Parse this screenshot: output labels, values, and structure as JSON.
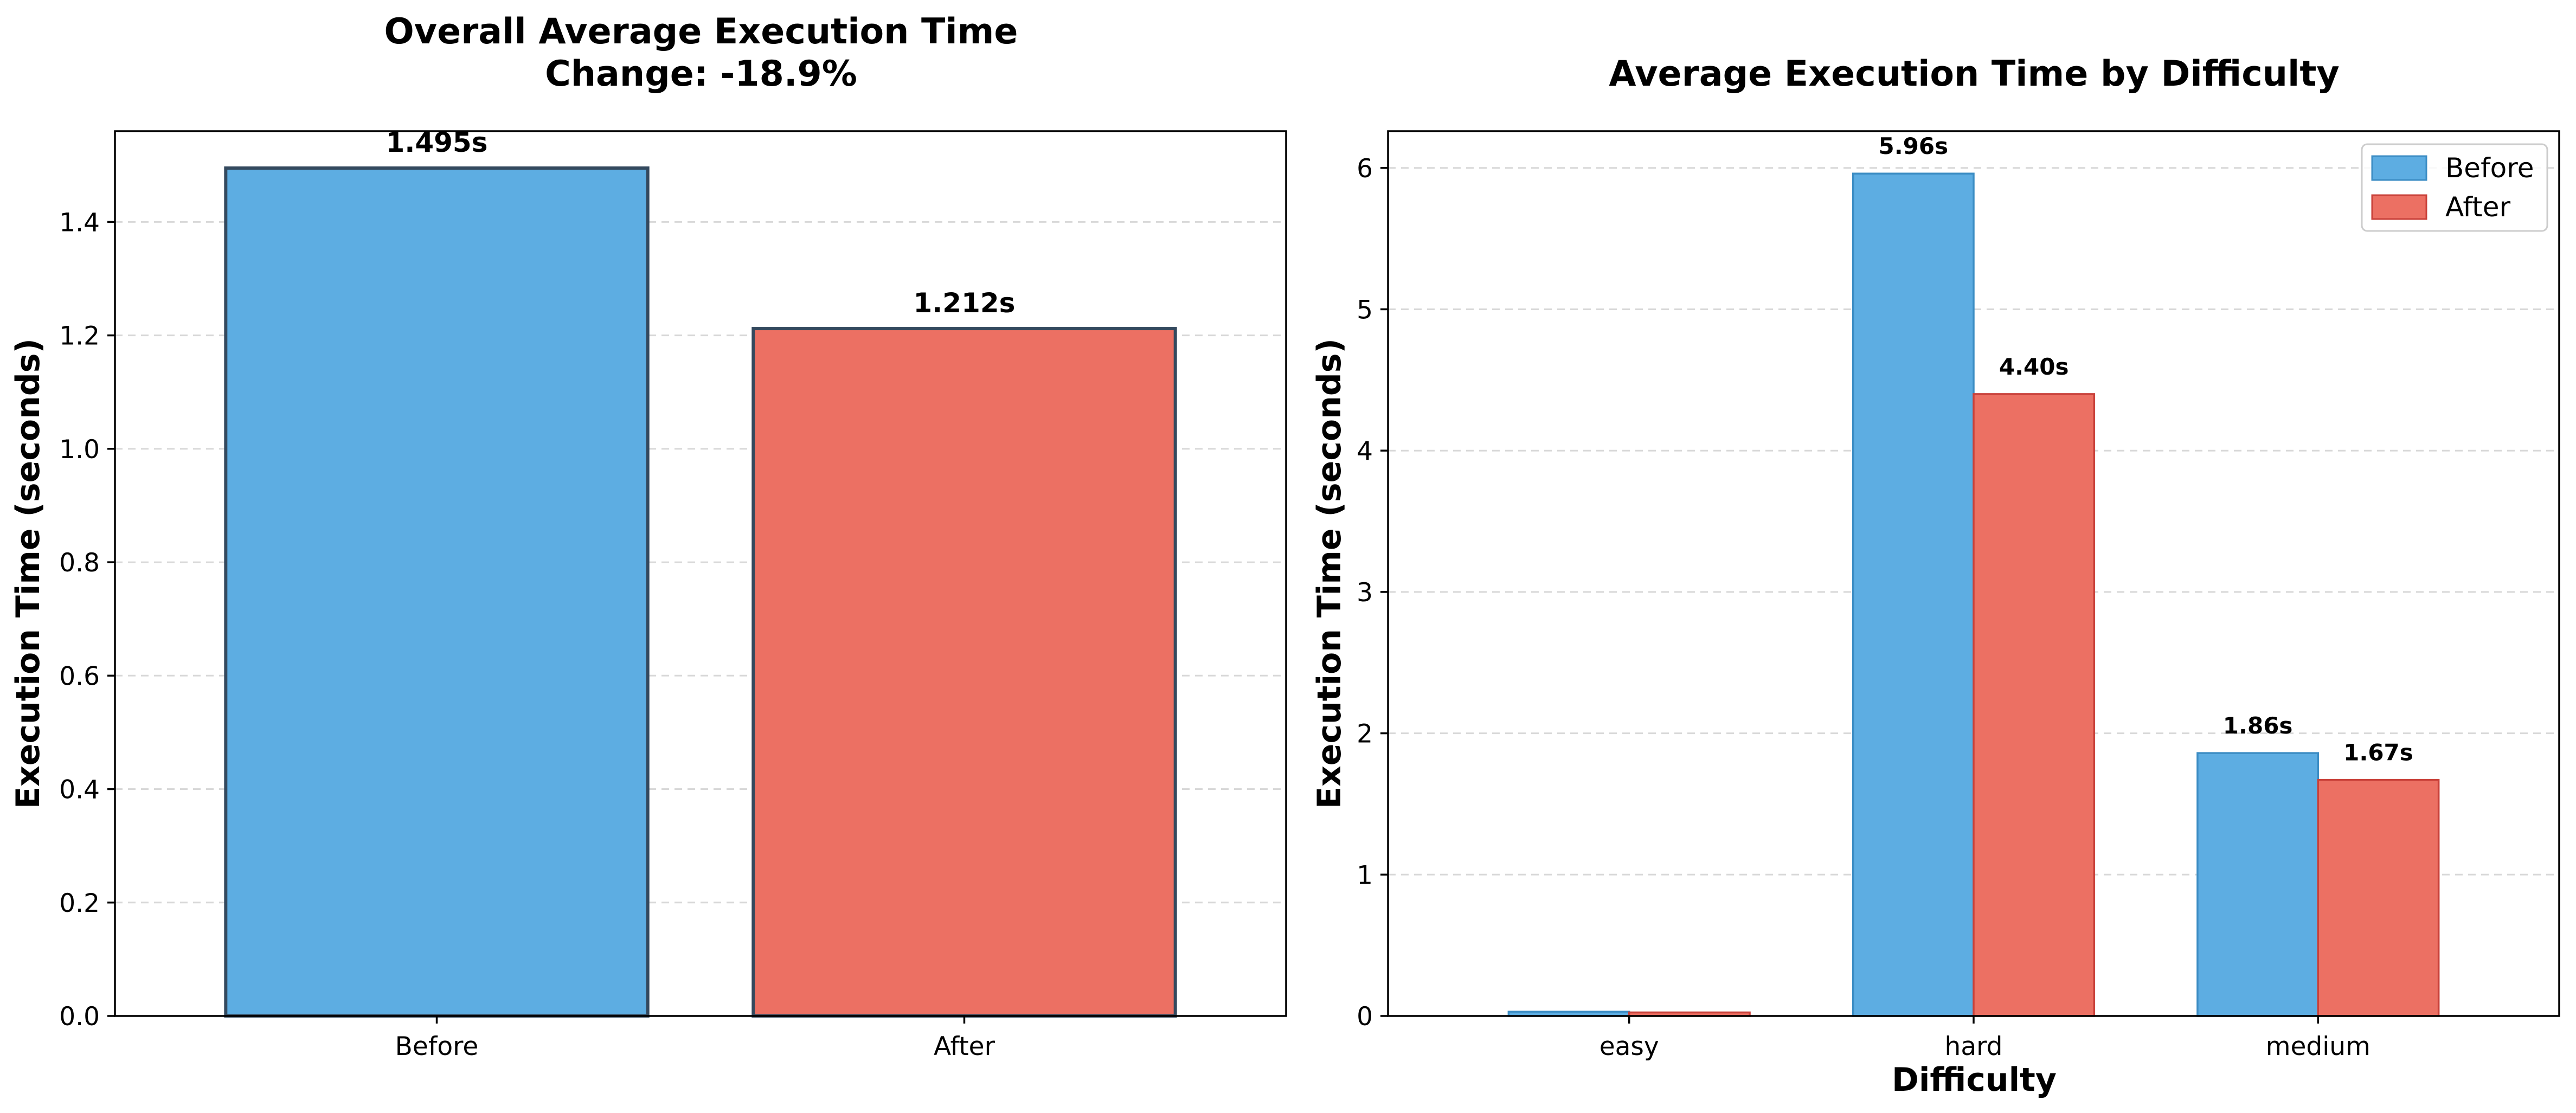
{
  "chart_data": [
    {
      "type": "bar",
      "title": "Overall Average Execution Time",
      "subtitle": "Change: -18.9%",
      "xlabel": "",
      "ylabel": "Execution Time (seconds)",
      "categories": [
        "Before",
        "After"
      ],
      "values": [
        1.495,
        1.212
      ],
      "value_labels": [
        "1.495s",
        "1.212s"
      ],
      "colors": [
        "#5DADE2",
        "#EC7063"
      ],
      "edge_color": "#34495E",
      "ylim": [
        0,
        1.56
      ],
      "yticks": [
        0.0,
        0.2,
        0.4,
        0.6,
        0.8,
        1.0,
        1.2,
        1.4
      ],
      "ytick_labels": [
        "0.0",
        "0.2",
        "0.4",
        "0.6",
        "0.8",
        "1.0",
        "1.2",
        "1.4"
      ],
      "grid": true,
      "legend": "none"
    },
    {
      "type": "bar",
      "title": "Average Execution Time by Difficulty",
      "xlabel": "Difficulty",
      "ylabel": "Execution Time (seconds)",
      "categories": [
        "easy",
        "hard",
        "medium"
      ],
      "series": [
        {
          "name": "Before",
          "values": [
            0.03,
            5.96,
            1.86
          ],
          "value_labels": [
            "",
            "5.96s",
            "1.86s"
          ],
          "color": "#5DADE2",
          "edge_color": "#3C8DC4"
        },
        {
          "name": "After",
          "values": [
            0.025,
            4.4,
            1.67
          ],
          "value_labels": [
            "",
            "4.40s",
            "1.67s"
          ],
          "color": "#EC7063",
          "edge_color": "#C9413A"
        }
      ],
      "ylim": [
        0,
        6.26
      ],
      "yticks": [
        0,
        1,
        2,
        3,
        4,
        5,
        6
      ],
      "ytick_labels": [
        "0",
        "1",
        "2",
        "3",
        "4",
        "5",
        "6"
      ],
      "grid": true,
      "legend": "top-right"
    }
  ]
}
